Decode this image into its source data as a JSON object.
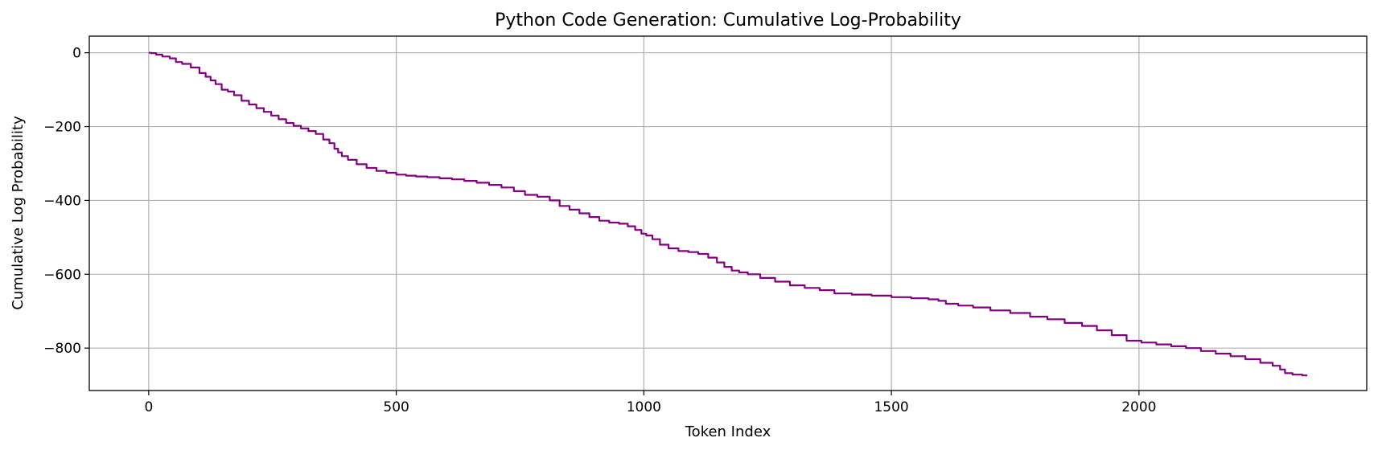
{
  "chart_data": {
    "type": "line",
    "title": "Python Code Generation: Cumulative Log-Probability",
    "xlabel": "Token Index",
    "ylabel": "Cumulative Log Probability",
    "xlim": [
      -120,
      2460
    ],
    "ylim": [
      -915,
      45
    ],
    "grid": true,
    "line_color": "#800080",
    "x_ticks": [
      0,
      500,
      1000,
      1500,
      2000
    ],
    "x_tick_labels": [
      "0",
      "500",
      "1000",
      "1500",
      "2000"
    ],
    "y_ticks": [
      0,
      -200,
      -400,
      -600,
      -800
    ],
    "y_tick_labels": [
      "0",
      "−200",
      "−400",
      "−600",
      "−800"
    ],
    "series": [
      {
        "x": [
          0,
          10,
          20,
          35,
          50,
          60,
          75,
          95,
          110,
          120,
          130,
          140,
          155,
          165,
          180,
          195,
          210,
          225,
          240,
          255,
          270,
          285,
          300,
          315,
          330,
          345,
          360,
          370,
          380,
          385,
          395,
          410,
          430,
          450,
          470,
          490,
          510,
          530,
          550,
          575,
          600,
          625,
          650,
          675,
          700,
          725,
          750,
          770,
          800,
          820,
          840,
          860,
          880,
          900,
          920,
          940,
          960,
          975,
          990,
          1000,
          1010,
          1025,
          1040,
          1060,
          1080,
          1100,
          1120,
          1140,
          1155,
          1170,
          1185,
          1200,
          1220,
          1250,
          1280,
          1310,
          1340,
          1370,
          1400,
          1440,
          1480,
          1520,
          1560,
          1590,
          1600,
          1620,
          1650,
          1680,
          1720,
          1760,
          1800,
          1830,
          1870,
          1900,
          1930,
          1960,
          1990,
          2020,
          2050,
          2080,
          2110,
          2140,
          2170,
          2200,
          2230,
          2260,
          2280,
          2290,
          2300,
          2320,
          2340
        ],
        "y": [
          0,
          -1,
          -5,
          -10,
          -15,
          -25,
          -30,
          -40,
          -55,
          -65,
          -75,
          -85,
          -100,
          -105,
          -115,
          -130,
          -140,
          -150,
          -160,
          -170,
          -180,
          -190,
          -198,
          -205,
          -212,
          -220,
          -235,
          -245,
          -260,
          -270,
          -280,
          -290,
          -302,
          -312,
          -320,
          -325,
          -330,
          -333,
          -335,
          -337,
          -340,
          -343,
          -347,
          -352,
          -358,
          -365,
          -375,
          -385,
          -390,
          -400,
          -415,
          -425,
          -435,
          -445,
          -455,
          -460,
          -463,
          -470,
          -480,
          -490,
          -495,
          -505,
          -520,
          -530,
          -537,
          -540,
          -545,
          -555,
          -568,
          -580,
          -590,
          -595,
          -600,
          -610,
          -620,
          -630,
          -637,
          -643,
          -652,
          -655,
          -658,
          -662,
          -665,
          -668,
          -672,
          -680,
          -685,
          -690,
          -698,
          -705,
          -715,
          -722,
          -732,
          -740,
          -752,
          -765,
          -780,
          -785,
          -790,
          -795,
          -800,
          -808,
          -815,
          -822,
          -830,
          -840,
          -848,
          -858,
          -868,
          -872,
          -874
        ]
      }
    ]
  }
}
